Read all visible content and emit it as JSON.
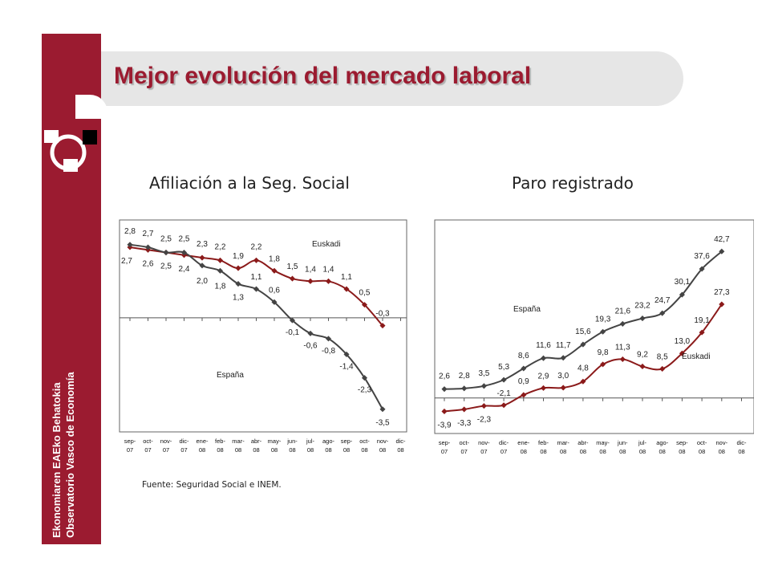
{
  "title": "Mejor evolución del mercado laboral",
  "sidebar": {
    "line1": "Ekonomiaren EAEko Behatokia",
    "line2": "Observatorio Vasco de Economía"
  },
  "source": "Fuente: Seguridad Social e INEM.",
  "colors": {
    "brand": "#9b1b30",
    "euskadi": "#8b1a1a",
    "espana": "#444444"
  },
  "chart_data": [
    {
      "type": "line",
      "title": "Afiliación a la Seg. Social",
      "categories": [
        "sep-07",
        "oct-07",
        "nov-07",
        "dic-07",
        "ene-08",
        "feb-08",
        "mar-08",
        "abr-08",
        "may-08",
        "jun-08",
        "jul-08",
        "ago-08",
        "sep-08",
        "oct-08",
        "nov-08",
        "dic-08"
      ],
      "series": [
        {
          "name": "Euskadi",
          "values": [
            2.7,
            2.6,
            2.5,
            2.4,
            2.3,
            2.2,
            1.9,
            2.2,
            1.8,
            1.5,
            1.4,
            1.4,
            1.1,
            0.5,
            -0.3,
            null
          ],
          "labels": [
            "2,7",
            "2,6",
            "2,5",
            "2,4",
            "2,3",
            "2,2",
            "1,9",
            "2,2",
            "1,8",
            "1,5",
            "1,4",
            "1,4",
            "1,1",
            "0,5",
            "-0,3",
            ""
          ]
        },
        {
          "name": "España",
          "values": [
            2.8,
            2.7,
            2.5,
            2.5,
            2.0,
            1.8,
            1.3,
            1.1,
            0.6,
            -0.1,
            -0.6,
            -0.8,
            -1.4,
            -2.3,
            -3.5,
            null
          ],
          "labels": [
            "2,8",
            "2,7",
            "2,5",
            "2,5",
            "2,0",
            "1,8",
            "1,3",
            "1,1",
            "0,6",
            "-0,1",
            "-0,6",
            "-0,8",
            "-1,4",
            "-2,3",
            "-3,5",
            ""
          ]
        }
      ],
      "ylim": [
        -4.0,
        3.5
      ],
      "grid": false
    },
    {
      "type": "line",
      "title": "Paro registrado",
      "categories": [
        "sep-07",
        "oct-07",
        "nov-07",
        "dic-07",
        "ene-08",
        "feb-08",
        "mar-08",
        "abr-08",
        "may-08",
        "jun-08",
        "jul-08",
        "ago-08",
        "sep-08",
        "oct-08",
        "nov-08",
        "dic-08"
      ],
      "series": [
        {
          "name": "España",
          "values": [
            2.6,
            2.8,
            3.5,
            5.3,
            8.6,
            11.6,
            11.7,
            15.6,
            19.3,
            21.6,
            23.2,
            24.7,
            30.1,
            37.6,
            42.7,
            null
          ],
          "labels": [
            "2,6",
            "2,8",
            "3,5",
            "5,3",
            "8,6",
            "11,6",
            "11,7",
            "15,6",
            "19,3",
            "21,6",
            "23,2",
            "24,7",
            "30,1",
            "37,6",
            "42,7",
            ""
          ]
        },
        {
          "name": "Euskadi",
          "values": [
            -3.9,
            -3.3,
            -2.3,
            -2.1,
            0.9,
            2.9,
            3.0,
            4.8,
            9.8,
            11.3,
            9.2,
            8.5,
            13.0,
            19.1,
            27.3,
            null
          ],
          "labels": [
            "-3,9",
            "-3,3",
            "-2,3",
            "-2,1",
            "0,9",
            "2,9",
            "3,0",
            "4,8",
            "9,8",
            "11,3",
            "9,2",
            "8,5",
            "13,0",
            "19,1",
            "27,3",
            ""
          ]
        }
      ],
      "ylim": [
        -8,
        50
      ],
      "grid": false
    }
  ]
}
